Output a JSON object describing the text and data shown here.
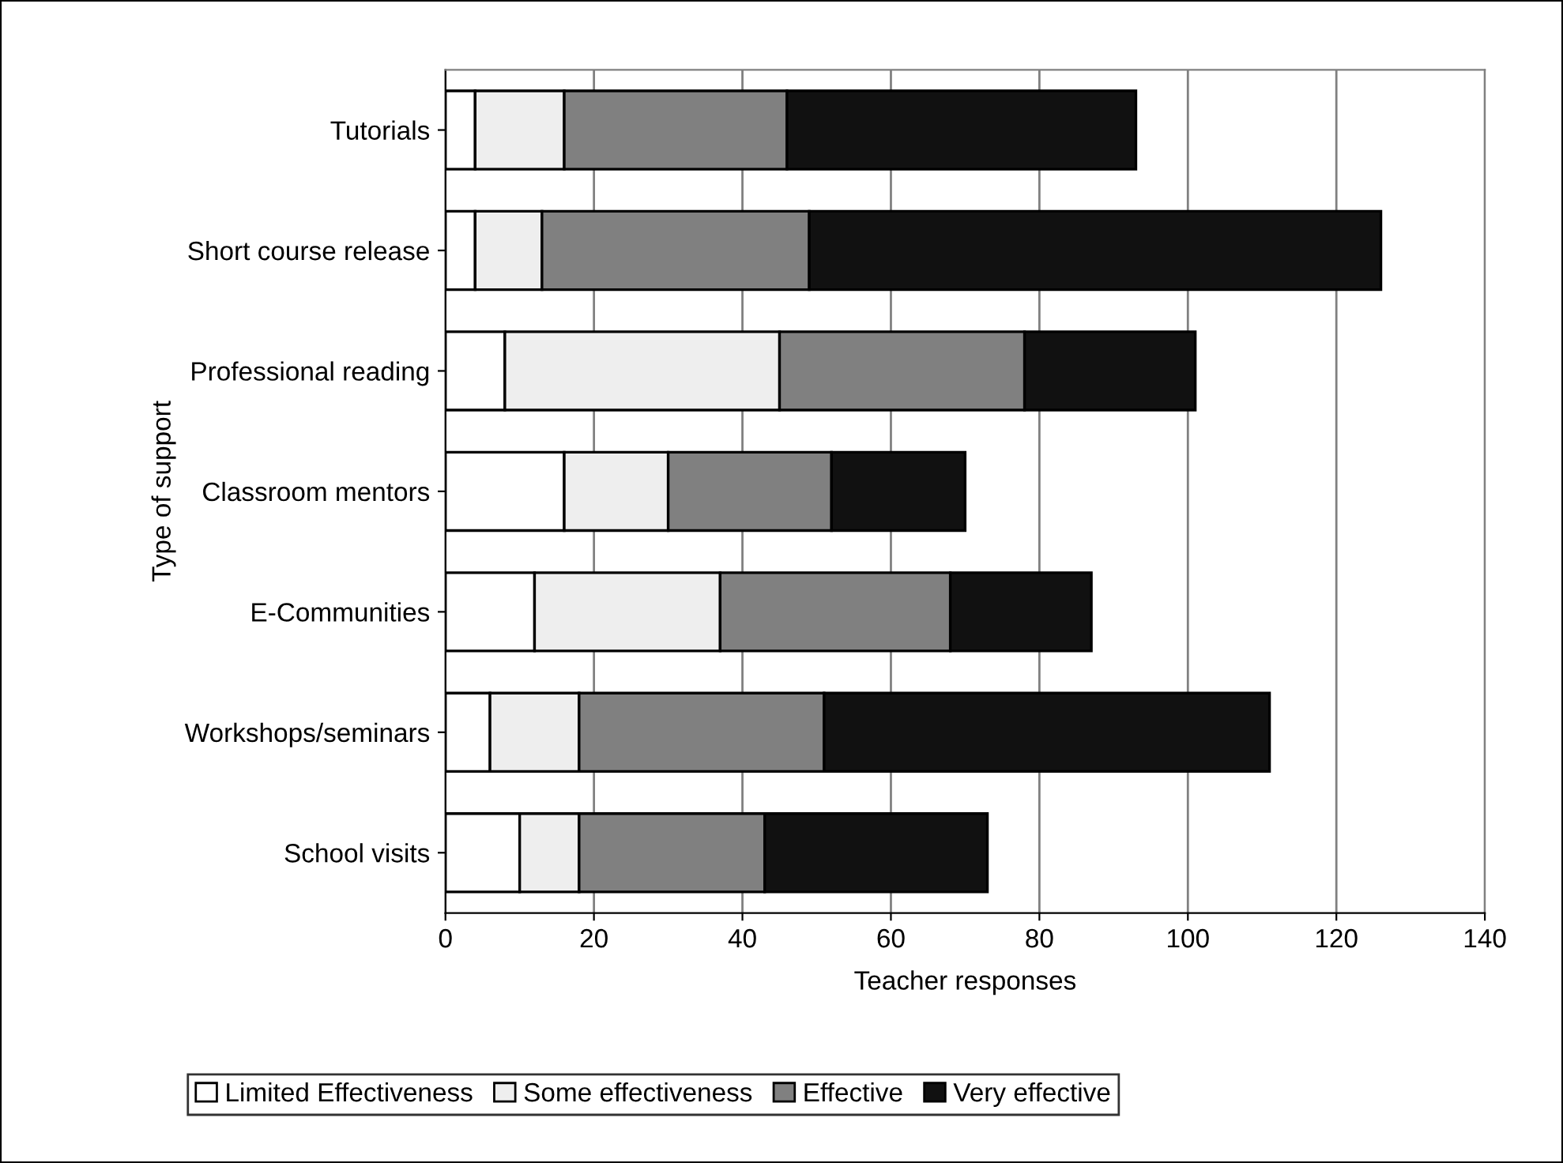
{
  "chart_data": {
    "type": "bar",
    "orientation": "horizontal",
    "stacked": true,
    "categories": [
      "Tutorials",
      "Short course release",
      "Professional reading",
      "Classroom mentors",
      "E-Communities",
      "Workshops/seminars",
      "School visits"
    ],
    "series": [
      {
        "name": "Limited Effectiveness",
        "color": "#ffffff",
        "values": [
          4,
          4,
          8,
          16,
          12,
          6,
          10
        ]
      },
      {
        "name": "Some effectiveness",
        "color": "#eeeeee",
        "values": [
          12,
          9,
          37,
          14,
          25,
          12,
          8
        ]
      },
      {
        "name": "Effective",
        "color": "#808080",
        "values": [
          30,
          36,
          33,
          22,
          31,
          33,
          25
        ]
      },
      {
        "name": "Very effective",
        "color": "#111111",
        "values": [
          47,
          77,
          23,
          18,
          19,
          60,
          30
        ]
      }
    ],
    "xlabel": "Teacher responses",
    "ylabel": "Type of support",
    "xlim": [
      0,
      140
    ],
    "xticks": [
      0,
      20,
      40,
      60,
      80,
      100,
      120,
      140
    ],
    "grid": "x",
    "legend": "bottom"
  }
}
